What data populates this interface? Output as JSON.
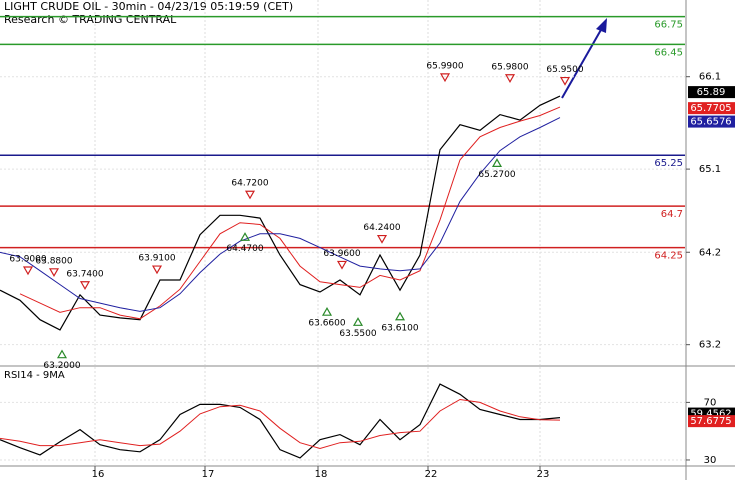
{
  "chart_data": [
    {
      "type": "line",
      "title": "LIGHT CRUDE OIL - 30min - 04/23/19 05:19:59 (CET)",
      "subtitle": "Research © TRADING CENTRAL",
      "x": [
        0,
        4,
        8,
        12,
        16,
        20,
        24,
        28,
        32,
        36,
        40,
        44,
        48,
        52,
        56,
        60,
        64,
        68,
        72,
        76,
        80,
        84,
        88,
        92,
        96,
        100,
        104,
        108,
        112
      ],
      "xlim": [
        0,
        137
      ],
      "ylim": [
        62.98,
        66.93
      ],
      "yticks": [
        63.2,
        64.2,
        65.1,
        66.1
      ],
      "grid": true,
      "series": [
        {
          "color": "#000000",
          "values": [
            63.79,
            63.68,
            63.47,
            63.36,
            63.74,
            63.52,
            63.49,
            63.47,
            63.9,
            63.9,
            64.39,
            64.6,
            64.6,
            64.57,
            64.17,
            63.85,
            63.77,
            63.9,
            63.74,
            64.17,
            63.79,
            64.17,
            65.31,
            65.58,
            65.52,
            65.69,
            65.63,
            65.79,
            65.89
          ]
        },
        {
          "color": "#e02020",
          "values": [
            null,
            63.75,
            63.65,
            63.55,
            63.6,
            63.6,
            63.52,
            63.48,
            63.62,
            63.8,
            64.1,
            64.4,
            64.52,
            64.5,
            64.35,
            64.05,
            63.88,
            63.85,
            63.82,
            63.95,
            63.9,
            64.0,
            64.55,
            65.2,
            65.45,
            65.55,
            65.62,
            65.68,
            65.7705
          ]
        },
        {
          "color": "#2020a0",
          "values": [
            64.2,
            64.15,
            64.0,
            63.85,
            63.7,
            63.65,
            63.6,
            63.56,
            63.6,
            63.75,
            63.98,
            64.18,
            64.32,
            64.4,
            64.4,
            64.35,
            64.25,
            64.15,
            64.05,
            64.02,
            64.0,
            64.02,
            64.3,
            64.75,
            65.05,
            65.3,
            65.45,
            65.55,
            65.6576
          ]
        }
      ],
      "levels": [
        {
          "value": 66.75,
          "color": "#2a9a2a"
        },
        {
          "value": 66.45,
          "color": "#2a9a2a"
        },
        {
          "value": 65.25,
          "color": "#1a1a8c"
        },
        {
          "value": 64.7,
          "color": "#d02020"
        },
        {
          "value": 64.25,
          "color": "#d02020"
        }
      ],
      "annotations": [
        {
          "label": "63.9000",
          "value": 63.9,
          "x": 5.6,
          "marker": "down"
        },
        {
          "label": "63.8800",
          "value": 63.88,
          "x": 10.8,
          "marker": "down"
        },
        {
          "label": "63.7400",
          "value": 63.74,
          "x": 17,
          "marker": "down"
        },
        {
          "label": "63.9100",
          "value": 63.91,
          "x": 31.4,
          "marker": "down"
        },
        {
          "label": "64.7200",
          "value": 64.72,
          "x": 50,
          "marker": "down"
        },
        {
          "label": "63.9600",
          "value": 63.96,
          "x": 68.4,
          "marker": "down"
        },
        {
          "label": "64.2400",
          "value": 64.24,
          "x": 76.4,
          "marker": "down"
        },
        {
          "label": "65.9900",
          "value": 65.99,
          "x": 89,
          "marker": "down"
        },
        {
          "label": "65.9800",
          "value": 65.98,
          "x": 102,
          "marker": "down"
        },
        {
          "label": "65.9500",
          "value": 65.95,
          "x": 113,
          "marker": "down"
        },
        {
          "label": "64.4700",
          "value": 64.47,
          "x": 49,
          "marker": "up"
        },
        {
          "label": "63.2000",
          "value": 63.2,
          "x": 12.4,
          "marker": "up"
        },
        {
          "label": "63.6600",
          "value": 63.66,
          "x": 65.4,
          "marker": "up"
        },
        {
          "label": "63.5500",
          "value": 63.55,
          "x": 71.6,
          "marker": "up"
        },
        {
          "label": "63.6100",
          "value": 63.61,
          "x": 80,
          "marker": "up"
        },
        {
          "label": "65.2700",
          "value": 65.27,
          "x": 99.4,
          "marker": "up"
        }
      ]
    },
    {
      "type": "line",
      "title": "RSI14 - 9MA",
      "x": [
        0,
        4,
        8,
        12,
        16,
        20,
        24,
        28,
        32,
        36,
        40,
        44,
        48,
        52,
        56,
        60,
        64,
        68,
        72,
        76,
        80,
        84,
        88,
        92,
        96,
        100,
        104,
        108,
        112
      ],
      "xlim": [
        0,
        137
      ],
      "xticks": [
        {
          "value": 19,
          "label": "16"
        },
        {
          "value": 41,
          "label": "17"
        },
        {
          "value": 63.6,
          "label": "18"
        },
        {
          "value": 85.6,
          "label": "22"
        },
        {
          "value": 108,
          "label": "23"
        }
      ],
      "ylim": [
        26.5,
        94.6
      ],
      "yticks": [
        30,
        70
      ],
      "grid": true,
      "series": [
        {
          "color": "#000000",
          "values": [
            44.1,
            38.5,
            33.5,
            42.7,
            51.1,
            40.6,
            37.1,
            35.7,
            44.1,
            61.6,
            68.6,
            68.6,
            66.5,
            58.1,
            37.1,
            31.4,
            44.1,
            47.6,
            40.6,
            58.1,
            44.1,
            54.6,
            82.7,
            75.6,
            65.1,
            61.6,
            58.1,
            58.1,
            59.4562
          ]
        },
        {
          "color": "#e02020",
          "values": [
            45,
            43,
            40,
            40,
            42,
            44,
            42,
            40,
            41,
            50,
            62,
            67,
            68,
            64,
            52,
            42,
            38,
            42,
            43,
            47,
            49,
            50,
            64,
            72,
            70,
            64,
            60,
            58,
            57.6775
          ]
        }
      ]
    }
  ]
}
